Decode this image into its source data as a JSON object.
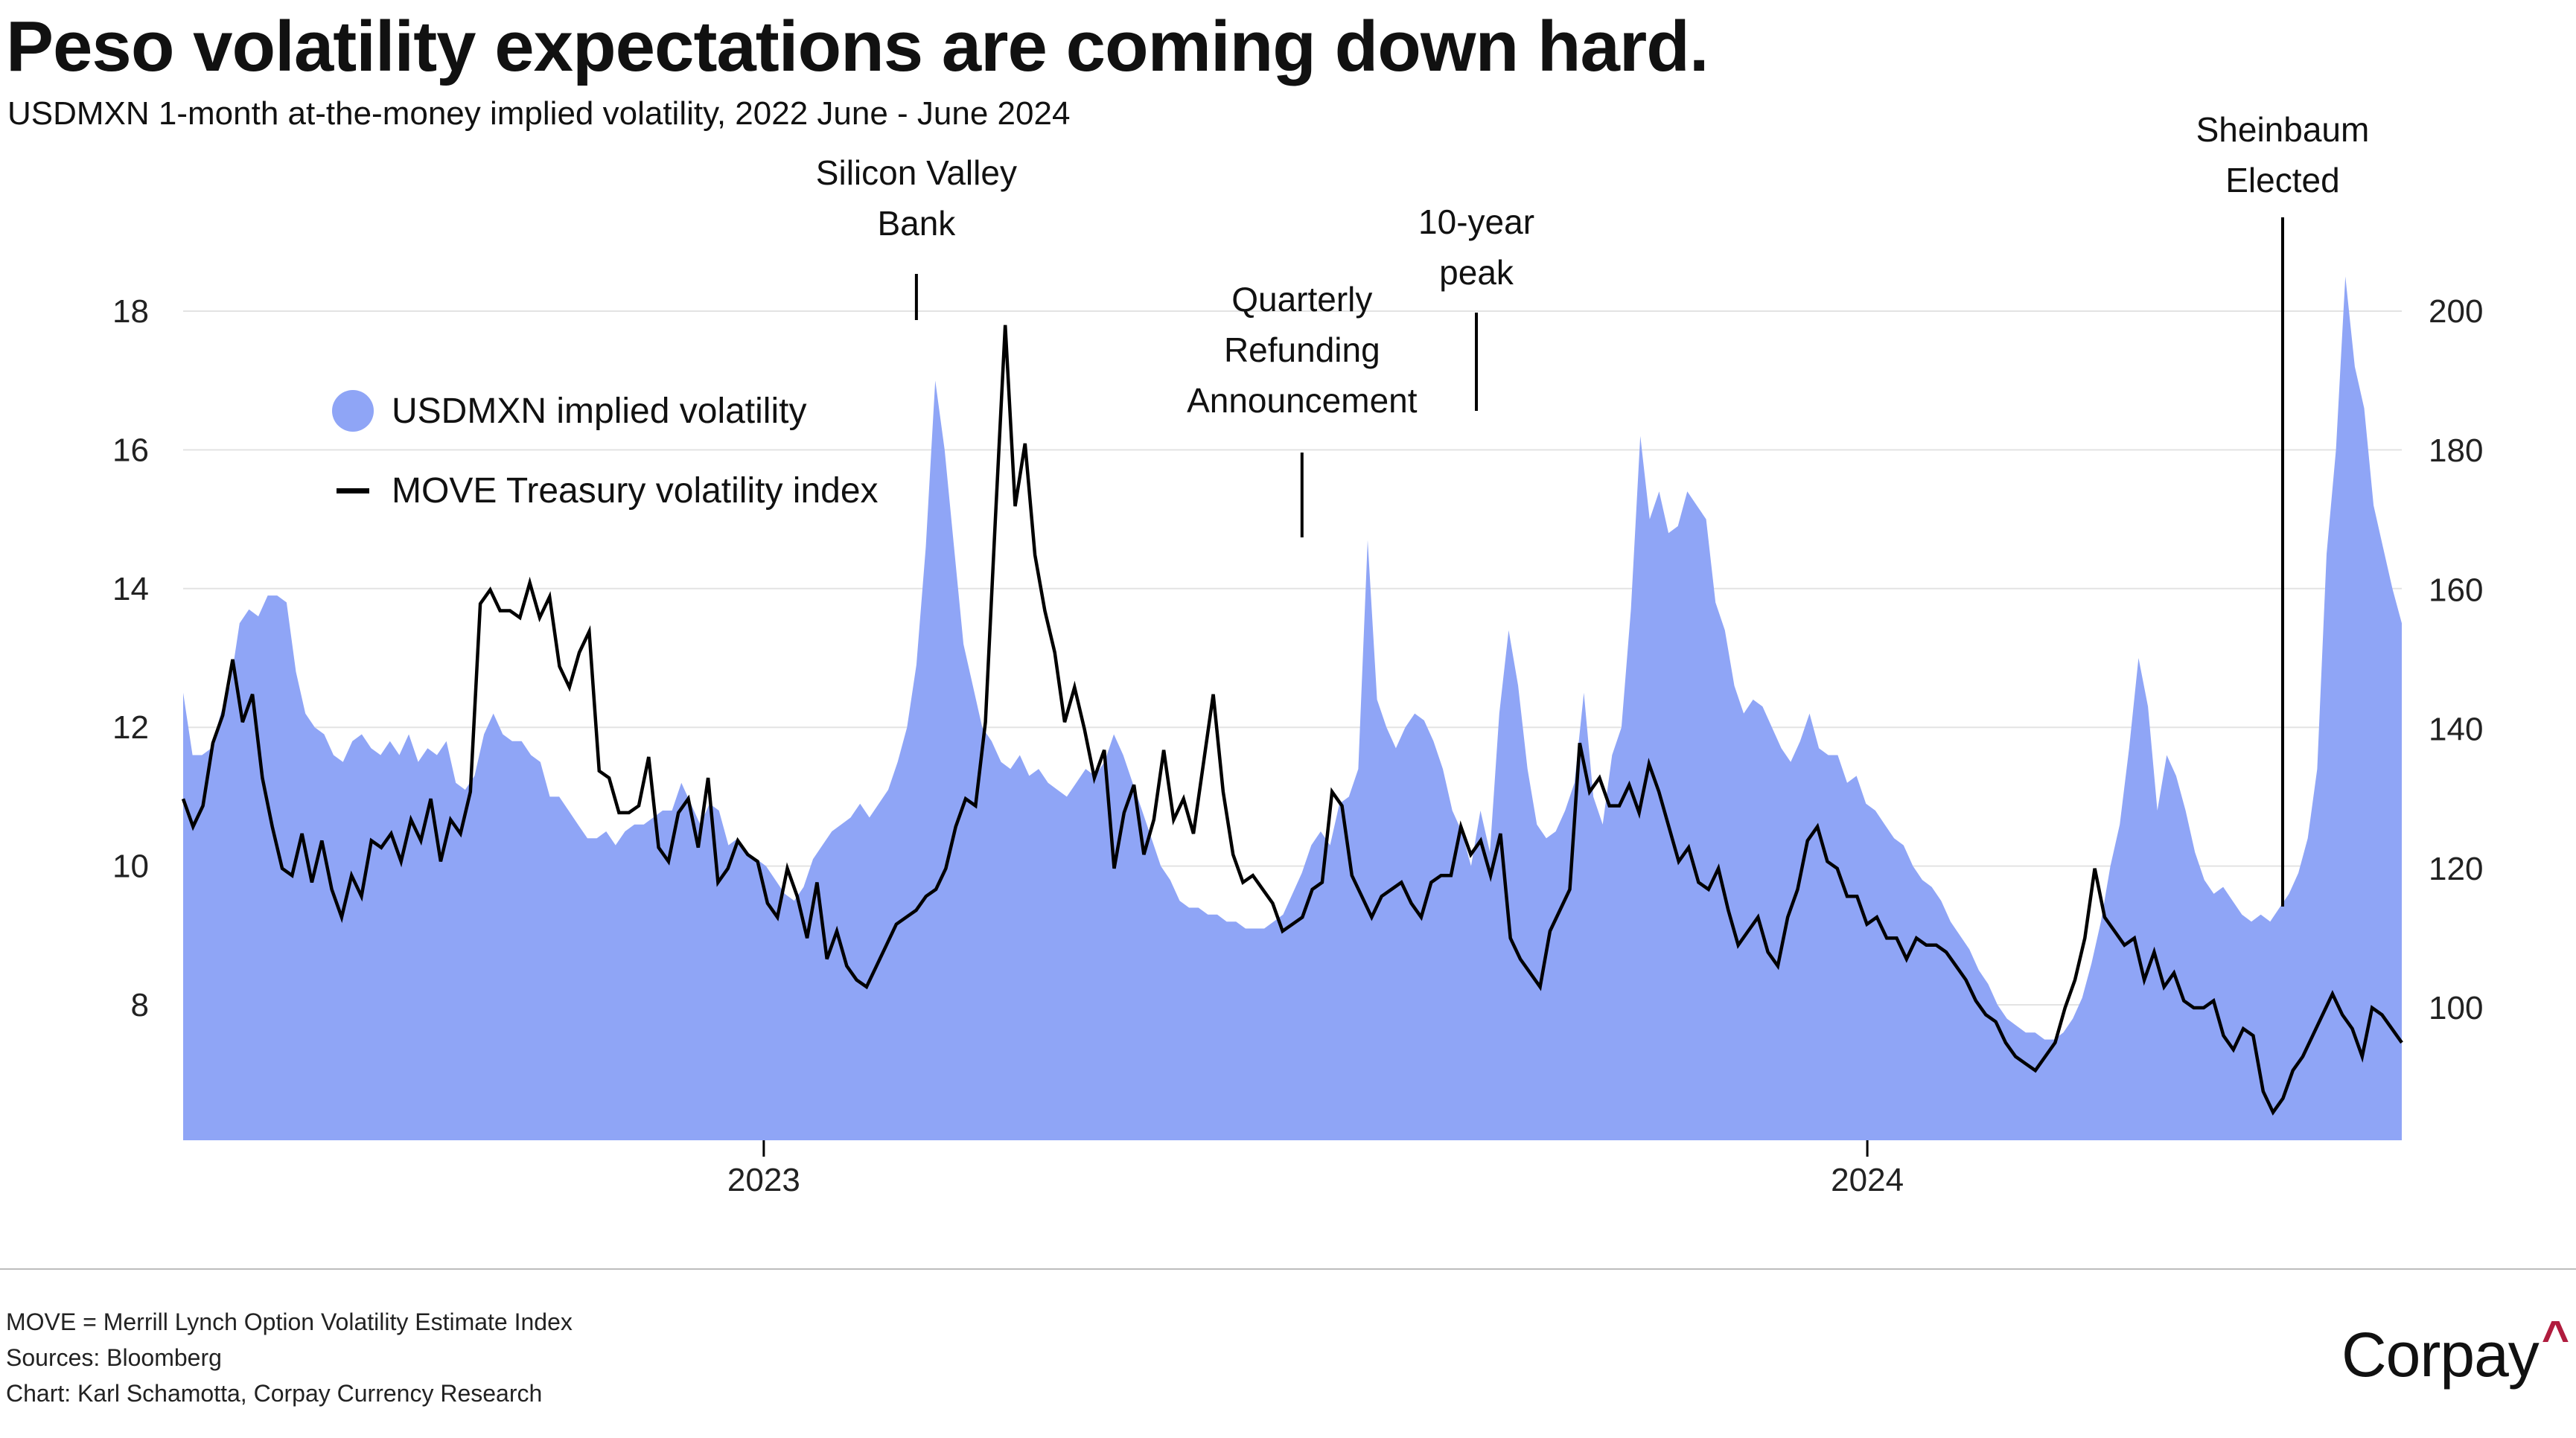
{
  "header": {
    "title": "Peso volatility expectations are coming down hard.",
    "subtitle_main": "USDMXN 1-month at-the-money implied volatility,",
    "subtitle_range": "2022 June - June 2024"
  },
  "legend": {
    "items": [
      {
        "label": "USDMXN implied volatility",
        "symbol": "circle",
        "color": "#8fa5f6"
      },
      {
        "label": "MOVE Treasury volatility index",
        "symbol": "line",
        "color": "#000000"
      }
    ]
  },
  "footer": {
    "note": "MOVE = Merrill Lynch Option Volatility Estimate Index",
    "sources": "Sources: Bloomberg",
    "credit": "Chart: Karl Schamotta, Corpay Currency Research"
  },
  "logo": {
    "text": "Corpay",
    "caret": "^",
    "caret_color": "#b01c3e"
  },
  "colors": {
    "area": "#8fa5f6",
    "line": "#000000",
    "grid": "#e3e3e3"
  },
  "chart_data": {
    "type": "area",
    "title": "Peso volatility expectations are coming down hard.",
    "subtitle": "USDMXN 1-month at-the-money implied volatility, 2022 June - June 2024",
    "xlabel": "",
    "x_range": [
      "2022-06",
      "2024-06"
    ],
    "x_ticks": [
      {
        "label": "2023",
        "t": 0.2617
      },
      {
        "label": "2024",
        "t": 0.7591
      }
    ],
    "y_left": {
      "label": "USDMXN implied volatility",
      "ticks": [
        8,
        10,
        12,
        14,
        16,
        18
      ],
      "range": [
        6.05,
        18
      ]
    },
    "y_right": {
      "label": "MOVE index",
      "ticks": [
        100,
        120,
        140,
        160,
        180,
        200
      ],
      "range": [
        81,
        200
      ]
    },
    "grid": true,
    "legend_position": "top-left",
    "annotations": [
      {
        "lines": [
          "Silicon Valley Bank"
        ],
        "text_lines": [
          "Silicon Valley",
          "Bank"
        ],
        "t": 0.3305
      },
      {
        "text_lines": [
          "Quarterly",
          "Refunding",
          "Announcement"
        ],
        "t": 0.5043
      },
      {
        "text_lines": [
          "10-year",
          "peak"
        ],
        "t": 0.5829
      },
      {
        "text_lines": [
          "Sheinbaum",
          "Elected"
        ],
        "t": 0.9463
      }
    ],
    "series": [
      {
        "name": "USDMXN implied volatility",
        "axis": "left",
        "kind": "area",
        "values": [
          12.5,
          11.6,
          11.6,
          11.7,
          12.2,
          12.6,
          13.5,
          13.7,
          13.6,
          13.9,
          13.9,
          13.8,
          12.8,
          12.2,
          12.0,
          11.9,
          11.6,
          11.5,
          11.8,
          11.9,
          11.7,
          11.6,
          11.8,
          11.6,
          11.9,
          11.5,
          11.7,
          11.6,
          11.8,
          11.2,
          11.1,
          11.3,
          11.9,
          12.2,
          11.9,
          11.8,
          11.8,
          11.6,
          11.5,
          11.0,
          11.0,
          10.8,
          10.6,
          10.4,
          10.4,
          10.5,
          10.3,
          10.5,
          10.6,
          10.6,
          10.7,
          10.8,
          10.8,
          11.2,
          10.9,
          10.6,
          10.9,
          10.8,
          10.3,
          10.4,
          10.2,
          10.1,
          10.0,
          9.8,
          9.6,
          9.5,
          9.7,
          10.1,
          10.3,
          10.5,
          10.6,
          10.7,
          10.9,
          10.7,
          10.9,
          11.1,
          11.5,
          12.0,
          12.9,
          14.6,
          17.0,
          16.0,
          14.6,
          13.2,
          12.6,
          12.0,
          11.8,
          11.5,
          11.4,
          11.6,
          11.3,
          11.4,
          11.2,
          11.1,
          11.0,
          11.2,
          11.4,
          11.3,
          11.5,
          11.9,
          11.6,
          11.2,
          10.8,
          10.4,
          10.0,
          9.8,
          9.5,
          9.4,
          9.4,
          9.3,
          9.3,
          9.2,
          9.2,
          9.1,
          9.1,
          9.1,
          9.2,
          9.3,
          9.6,
          9.9,
          10.3,
          10.5,
          10.3,
          10.9,
          11.0,
          11.4,
          14.7,
          12.4,
          12.0,
          11.7,
          12.0,
          12.2,
          12.1,
          11.8,
          11.4,
          10.8,
          10.5,
          10.0,
          10.8,
          10.2,
          12.2,
          13.4,
          12.6,
          11.4,
          10.6,
          10.4,
          10.5,
          10.8,
          11.2,
          12.5,
          11.0,
          10.6,
          11.6,
          12.0,
          13.7,
          16.2,
          15.0,
          15.4,
          14.8,
          14.9,
          15.4,
          15.2,
          15.0,
          13.8,
          13.4,
          12.6,
          12.2,
          12.4,
          12.3,
          12.0,
          11.7,
          11.5,
          11.8,
          12.2,
          11.7,
          11.6,
          11.6,
          11.2,
          11.3,
          10.9,
          10.8,
          10.6,
          10.4,
          10.3,
          10.0,
          9.8,
          9.7,
          9.5,
          9.2,
          9.0,
          8.8,
          8.5,
          8.3,
          8.0,
          7.8,
          7.7,
          7.6,
          7.6,
          7.5,
          7.5,
          7.6,
          7.8,
          8.1,
          8.6,
          9.2,
          10.0,
          10.6,
          11.7,
          13.0,
          12.3,
          10.8,
          11.6,
          11.3,
          10.8,
          10.2,
          9.8,
          9.6,
          9.7,
          9.5,
          9.3,
          9.2,
          9.3,
          9.2,
          9.4,
          9.6,
          9.9,
          10.4,
          11.4,
          14.5,
          16.0,
          18.5,
          17.2,
          16.6,
          15.2,
          14.6,
          14.0,
          13.5
        ]
      },
      {
        "name": "MOVE Treasury volatility index",
        "axis": "right",
        "kind": "line",
        "values": [
          130,
          126,
          129,
          138,
          142,
          150,
          141,
          145,
          133,
          126,
          120,
          119,
          125,
          118,
          124,
          117,
          113,
          119,
          116,
          124,
          123,
          125,
          121,
          127,
          124,
          130,
          121,
          127,
          125,
          131,
          158,
          160,
          157,
          157,
          156,
          161,
          156,
          159,
          149,
          146,
          151,
          154,
          134,
          133,
          128,
          128,
          129,
          136,
          123,
          121,
          128,
          130,
          123,
          133,
          118,
          120,
          124,
          122,
          121,
          115,
          113,
          120,
          116,
          110,
          118,
          107,
          111,
          106,
          104,
          103,
          106,
          109,
          112,
          113,
          114,
          116,
          117,
          120,
          126,
          130,
          129,
          141,
          170,
          198,
          172,
          181,
          165,
          157,
          151,
          141,
          146,
          140,
          133,
          137,
          120,
          128,
          132,
          122,
          127,
          137,
          127,
          130,
          125,
          135,
          145,
          131,
          122,
          118,
          119,
          117,
          115,
          111,
          112,
          113,
          117,
          118,
          131,
          129,
          119,
          116,
          113,
          116,
          117,
          118,
          115,
          113,
          118,
          119,
          119,
          126,
          122,
          124,
          119,
          125,
          110,
          107,
          105,
          103,
          111,
          114,
          117,
          138,
          131,
          133,
          129,
          129,
          132,
          128,
          135,
          131,
          126,
          121,
          123,
          118,
          117,
          120,
          114,
          109,
          111,
          113,
          108,
          106,
          113,
          117,
          124,
          126,
          121,
          120,
          116,
          116,
          112,
          113,
          110,
          110,
          107,
          110,
          109,
          109,
          108,
          106,
          104,
          101,
          99,
          98,
          95,
          93,
          92,
          91,
          93,
          95,
          100,
          104,
          110,
          120,
          113,
          111,
          109,
          110,
          104,
          108,
          103,
          105,
          101,
          100,
          100,
          101,
          96,
          94,
          97,
          96,
          88,
          85,
          87,
          91,
          93,
          96,
          99,
          102,
          99,
          97,
          93,
          100,
          99,
          97,
          95
        ]
      }
    ]
  }
}
